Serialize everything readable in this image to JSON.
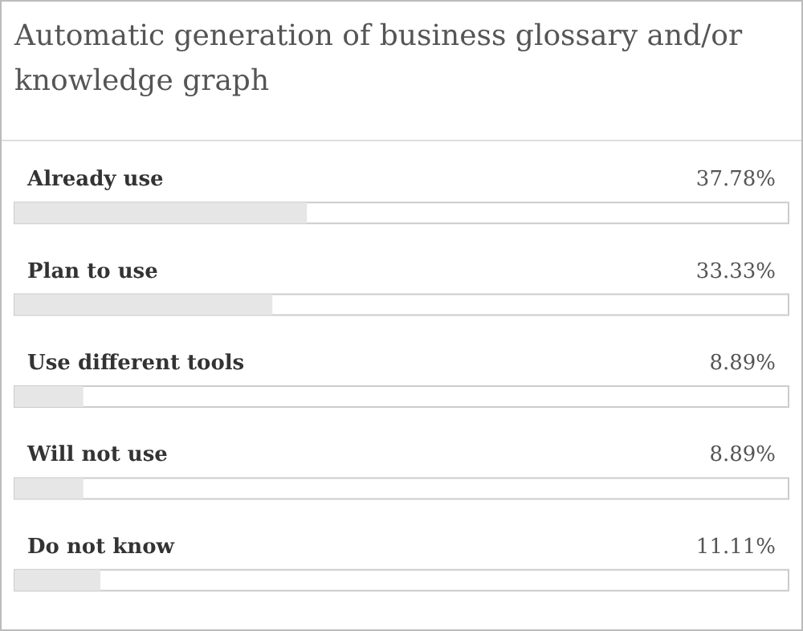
{
  "chart_data": {
    "type": "bar",
    "orientation": "horizontal",
    "title": "Automatic generation of business glossary and/or knowledge graph",
    "categories": [
      "Already use",
      "Plan to use",
      "Use different tools",
      "Will not use",
      "Do not know"
    ],
    "values": [
      37.78,
      33.33,
      8.89,
      8.89,
      11.11
    ],
    "value_labels": [
      "37.78%",
      "33.33%",
      "8.89%",
      "8.89%",
      "11.11%"
    ],
    "color": "#e6e6e6",
    "xlim": [
      0,
      100
    ]
  }
}
